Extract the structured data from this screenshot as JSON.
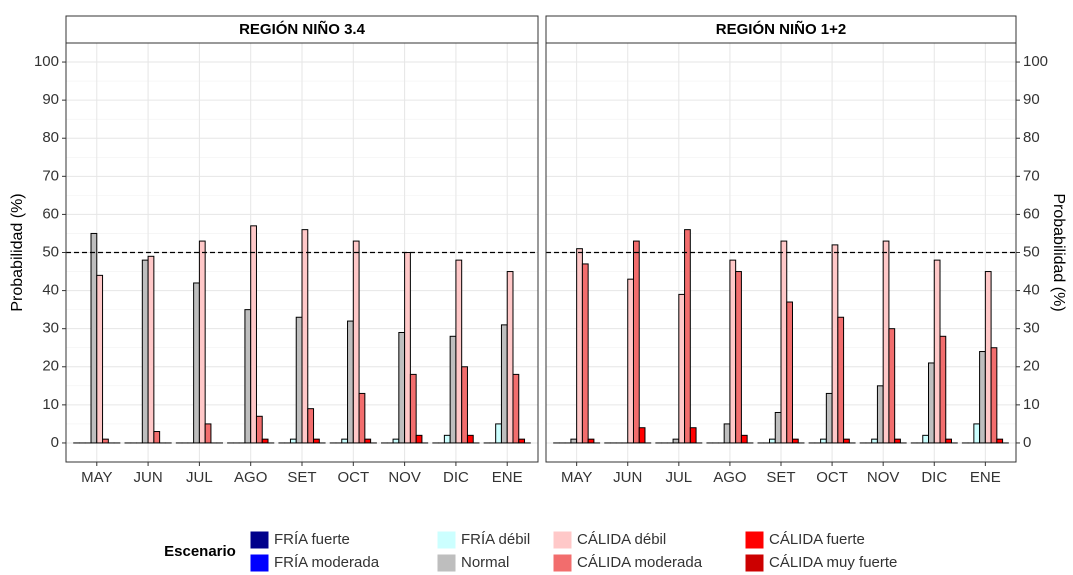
{
  "chart_data": [
    {
      "type": "bar",
      "title": "REGIÓN NIÑO 3.4",
      "y_label": "Probabilidad (%)",
      "categories": [
        "MAY",
        "JUN",
        "JUL",
        "AGO",
        "SET",
        "OCT",
        "NOV",
        "DIC",
        "ENE"
      ],
      "ylim": [
        -5,
        105
      ],
      "yticks": [
        0,
        10,
        20,
        30,
        40,
        50,
        60,
        70,
        80,
        90,
        100
      ],
      "grid": true,
      "reference_line": 50,
      "series": [
        {
          "name": "FRÍA fuerte",
          "color": "#00008b",
          "values": [
            0,
            0,
            0,
            0,
            0,
            0,
            0,
            0,
            0
          ]
        },
        {
          "name": "FRÍA moderada",
          "color": "#0000ff",
          "values": [
            0,
            0,
            0,
            0,
            0,
            0,
            0,
            0,
            0
          ]
        },
        {
          "name": "FRÍA débil",
          "color": "#ccffff",
          "values": [
            0,
            0,
            0,
            0,
            1,
            1,
            1,
            2,
            5
          ]
        },
        {
          "name": "Normal",
          "color": "#bebebe",
          "values": [
            55,
            48,
            42,
            35,
            33,
            32,
            29,
            28,
            31
          ]
        },
        {
          "name": "CÁLIDA débil",
          "color": "#ffc8c8",
          "values": [
            44,
            49,
            53,
            57,
            56,
            53,
            50,
            48,
            45
          ]
        },
        {
          "name": "CÁLIDA moderada",
          "color": "#f26d6d",
          "values": [
            1,
            3,
            5,
            7,
            9,
            13,
            18,
            20,
            18
          ]
        },
        {
          "name": "CÁLIDA fuerte",
          "color": "#ff0000",
          "values": [
            0,
            0,
            0,
            1,
            1,
            1,
            2,
            2,
            1
          ]
        },
        {
          "name": "CÁLIDA muy fuerte",
          "color": "#cc0000",
          "values": [
            0,
            0,
            0,
            0,
            0,
            0,
            0,
            0,
            0
          ]
        }
      ]
    },
    {
      "type": "bar",
      "title": "REGIÓN NIÑO 1+2",
      "y2_label": "Probabilidad (%)",
      "categories": [
        "MAY",
        "JUN",
        "JUL",
        "AGO",
        "SET",
        "OCT",
        "NOV",
        "DIC",
        "ENE"
      ],
      "ylim": [
        -5,
        105
      ],
      "yticks": [
        0,
        10,
        20,
        30,
        40,
        50,
        60,
        70,
        80,
        90,
        100
      ],
      "y2lim": [
        -5,
        105
      ],
      "y2ticks": [
        0,
        10,
        20,
        30,
        40,
        50,
        60,
        70,
        80,
        90,
        100
      ],
      "grid": true,
      "reference_line": 50,
      "series": [
        {
          "name": "FRÍA fuerte",
          "color": "#00008b",
          "values": [
            0,
            0,
            0,
            0,
            0,
            0,
            0,
            0,
            0
          ]
        },
        {
          "name": "FRÍA moderada",
          "color": "#0000ff",
          "values": [
            0,
            0,
            0,
            0,
            0,
            0,
            0,
            0,
            0
          ]
        },
        {
          "name": "FRÍA débil",
          "color": "#ccffff",
          "values": [
            0,
            0,
            0,
            0,
            1,
            1,
            1,
            2,
            5
          ]
        },
        {
          "name": "Normal",
          "color": "#bebebe",
          "values": [
            1,
            0,
            1,
            5,
            8,
            13,
            15,
            21,
            24
          ]
        },
        {
          "name": "CÁLIDA débil",
          "color": "#ffc8c8",
          "values": [
            51,
            43,
            39,
            48,
            53,
            52,
            53,
            48,
            45
          ]
        },
        {
          "name": "CÁLIDA moderada",
          "color": "#f26d6d",
          "values": [
            47,
            53,
            56,
            45,
            37,
            33,
            30,
            28,
            25
          ]
        },
        {
          "name": "CÁLIDA fuerte",
          "color": "#ff0000",
          "values": [
            1,
            4,
            4,
            2,
            1,
            1,
            1,
            1,
            1
          ]
        },
        {
          "name": "CÁLIDA muy fuerte",
          "color": "#cc0000",
          "values": [
            0,
            0,
            0,
            0,
            0,
            0,
            0,
            0,
            0
          ]
        }
      ]
    }
  ],
  "legend": {
    "title": "Escenario"
  }
}
